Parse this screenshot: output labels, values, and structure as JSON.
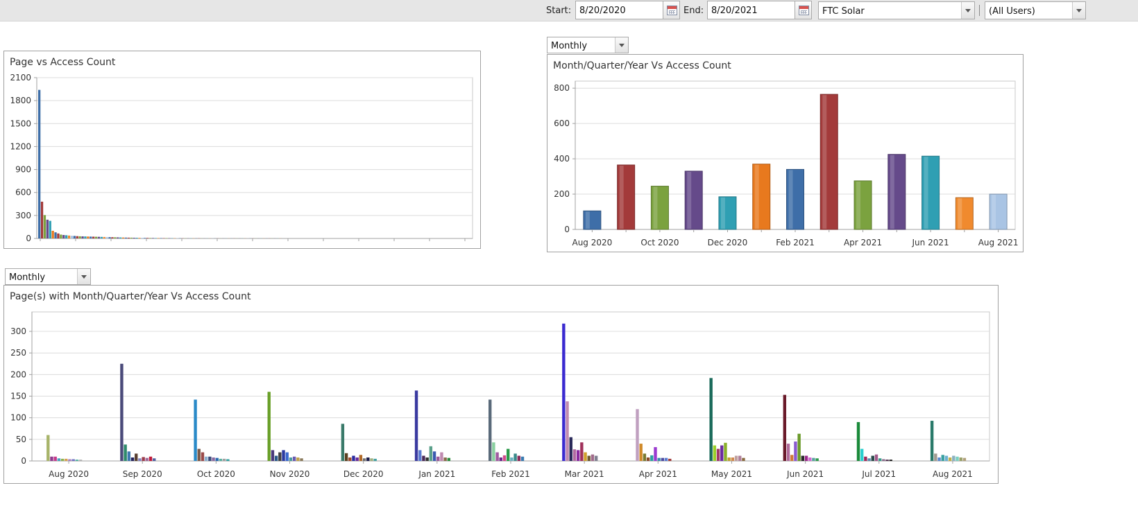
{
  "filters": {
    "start_label": "Start:",
    "start_value": "8/20/2020",
    "end_label": "End:",
    "end_value": "8/20/2021",
    "company_value": "FTC Solar",
    "separator": "|",
    "user_value": "(All Users)"
  },
  "top_right": {
    "period_dropdown": "Monthly"
  },
  "bottom": {
    "period_dropdown": "Monthly"
  },
  "colors": {
    "palette": [
      "#3e6ea8",
      "#a33a3a",
      "#7ba23f",
      "#654a8a",
      "#2f9fb3",
      "#e8791e",
      "#3e6ea8",
      "#a33a3a",
      "#7ba23f",
      "#654a8a",
      "#2f9fb3",
      "#f08a2e",
      "#a9c4e4"
    ],
    "grid": "#dcdcdc",
    "axis": "#a0a0a0"
  },
  "charts": {
    "page_access": {
      "title": "Page vs Access Count",
      "chart_data": {
        "type": "bar",
        "xlabel": "",
        "ylabel": "",
        "ylim": [
          0,
          2100
        ],
        "yticks": [
          0,
          300,
          600,
          900,
          1200,
          1500,
          1800,
          2100
        ],
        "values": [
          1940,
          480,
          305,
          245,
          230,
          100,
          80,
          65,
          50,
          45,
          42,
          38,
          35,
          33,
          30,
          28,
          27,
          26,
          25,
          24,
          23,
          22,
          21,
          20,
          19,
          18,
          17,
          16,
          15,
          14,
          13,
          12,
          11,
          10,
          10,
          9,
          9,
          8,
          8,
          7,
          7,
          6,
          6,
          5,
          5,
          5,
          4,
          4,
          4,
          3,
          3,
          3,
          3,
          2,
          2,
          2,
          2,
          2,
          2,
          2,
          1,
          1,
          1,
          1,
          1,
          1,
          1,
          1,
          1,
          1,
          1,
          1,
          1,
          1,
          1,
          1,
          1,
          1,
          1,
          1,
          1,
          1,
          1,
          1,
          1,
          1,
          1,
          1,
          1,
          1
        ]
      }
    },
    "month_access": {
      "title": "Month/Quarter/Year Vs Access Count",
      "chart_data": {
        "type": "bar",
        "categories": [
          "Aug 2020",
          "Sep 2020",
          "Oct 2020",
          "Nov 2020",
          "Dec 2020",
          "Jan 2021",
          "Feb 2021",
          "Mar 2021",
          "Apr 2021",
          "May 2021",
          "Jun 2021",
          "Jul 2021",
          "Aug 2021"
        ],
        "tick_labels": [
          "Aug 2020",
          "",
          "Oct 2020",
          "",
          "Dec 2020",
          "",
          "Feb 2021",
          "",
          "Apr 2021",
          "",
          "Jun 2021",
          "",
          "Aug 2021"
        ],
        "values": [
          105,
          365,
          245,
          330,
          185,
          370,
          340,
          765,
          275,
          425,
          415,
          180,
          200
        ],
        "ylim": [
          0,
          840
        ],
        "yticks": [
          0,
          200,
          400,
          600,
          800
        ],
        "xlabel": "",
        "ylabel": ""
      }
    },
    "pages_month_access": {
      "title": "Page(s) with Month/Quarter/Year Vs Access Count",
      "chart_data": {
        "type": "bar",
        "categories": [
          "Aug 2020",
          "Sep 2020",
          "Oct 2020",
          "Nov 2020",
          "Dec 2020",
          "Jan 2021",
          "Feb 2021",
          "Mar 2021",
          "Apr 2021",
          "May 2021",
          "Jun 2021",
          "Jul 2021",
          "Aug 2021"
        ],
        "ylim": [
          0,
          345
        ],
        "yticks": [
          0,
          50,
          100,
          150,
          200,
          250,
          300
        ],
        "xlabel": "",
        "ylabel": "",
        "groups": [
          {
            "values": [
              60,
              10,
              10,
              6,
              5,
              5,
              4,
              4,
              3,
              3
            ],
            "colors": [
              "#a8b46a",
              "#8e3a8e",
              "#c43a8a",
              "#4aa0c0",
              "#8bb050",
              "#d8a050",
              "#a67ec0",
              "#7070c0",
              "#50b0a0",
              "#b0b0b0"
            ]
          },
          {
            "values": [
              225,
              38,
              22,
              8,
              17,
              6,
              9,
              7,
              10,
              6
            ],
            "colors": [
              "#4a4a7a",
              "#2e8a6a",
              "#3e7ab0",
              "#20205a",
              "#5a4030",
              "#8080c0",
              "#9c3a4a",
              "#a06a9a",
              "#c01a3a",
              "#5060a0"
            ]
          },
          {
            "values": [
              142,
              28,
              20,
              10,
              10,
              8,
              7,
              5,
              5,
              4
            ],
            "colors": [
              "#2a8ac8",
              "#7a5a4a",
              "#9a4a4a",
              "#8ab0d0",
              "#3a4a7a",
              "#8a6aa0",
              "#2a6ab0",
              "#5ab0a0",
              "#a0a0a0",
              "#30a0a0"
            ]
          },
          {
            "values": [
              160,
              25,
              12,
              20,
              25,
              20,
              8,
              10,
              8,
              6
            ],
            "colors": [
              "#6aa02a",
              "#4a3a7a",
              "#2a5a8a",
              "#404040",
              "#2a3aa0",
              "#3a6ad0",
              "#4a9aa0",
              "#6a5ab0",
              "#c0a04a",
              "#8a7a5a"
            ]
          },
          {
            "values": [
              86,
              18,
              8,
              12,
              8,
              14,
              6,
              8,
              6,
              5
            ],
            "colors": [
              "#3a7a6a",
              "#5a4020",
              "#a04a2a",
              "#2a2aa0",
              "#6a2a9a",
              "#b06a2a",
              "#707070",
              "#1a1a4a",
              "#a0b080",
              "#40a0a0"
            ]
          },
          {
            "values": [
              163,
              25,
              12,
              8,
              34,
              22,
              10,
              20,
              8,
              7
            ],
            "colors": [
              "#3a3aa0",
              "#5a7ad0",
              "#4a2a5a",
              "#303030",
              "#5aa08a",
              "#3a5ab0",
              "#9a5a9a",
              "#c08ab0",
              "#8a6a4a",
              "#2a8a3a"
            ]
          },
          {
            "values": [
              142,
              43,
              20,
              8,
              13,
              28,
              8,
              17,
              12,
              10
            ],
            "colors": [
              "#5a6a7a",
              "#8ad0a0",
              "#a05aa0",
              "#6a2a8a",
              "#d04a8a",
              "#2a9a4a",
              "#6ab0c0",
              "#3a8a8a",
              "#8a2a5a",
              "#3a7ab0"
            ]
          },
          {
            "values": [
              318,
              138,
              55,
              27,
              25,
              43,
              20,
              12,
              15,
              12
            ],
            "colors": [
              "#3a2ad0",
              "#c08ab0",
              "#2a2a5a",
              "#b06aa0",
              "#8a2aa0",
              "#a0305a",
              "#d0a02a",
              "#705a30",
              "#a06a8a",
              "#808090"
            ]
          },
          {
            "values": [
              120,
              40,
              17,
              8,
              13,
              32,
              7,
              7,
              7,
              5
            ],
            "colors": [
              "#c0a0c0",
              "#d08a2a",
              "#7a7a30",
              "#8a4a2a",
              "#2aa0a0",
              "#9a3ad0",
              "#3a8ab0",
              "#4a4aa0",
              "#5a7ad0",
              "#a03a3a"
            ]
          },
          {
            "values": [
              192,
              36,
              28,
              36,
              42,
              8,
              8,
              12,
              12,
              7
            ],
            "colors": [
              "#1a6a5a",
              "#9ad02a",
              "#a03a6a",
              "#6a2aa0",
              "#8ab02a",
              "#c0a030",
              "#d08a50",
              "#c0a0a0",
              "#b0809a",
              "#8a6a40"
            ]
          },
          {
            "values": [
              153,
              40,
              14,
              45,
              63,
              12,
              12,
              8,
              7,
              6
            ],
            "colors": [
              "#6a1a2a",
              "#b06a9a",
              "#d07a3a",
              "#8a5ad0",
              "#6a9a2a",
              "#2a2a2a",
              "#9a2a8a",
              "#d06ad0",
              "#5aa0a0",
              "#2a9a4a"
            ]
          },
          {
            "values": [
              90,
              28,
              10,
              6,
              12,
              15,
              6,
              4,
              3,
              3
            ],
            "colors": [
              "#1a8a3a",
              "#2ad0d0",
              "#a02a5a",
              "#5a8ab0",
              "#2a4a4a",
              "#a05a8a",
              "#3a9a8a",
              "#8a6a8a",
              "#4a2a4a",
              "#1a1a1a"
            ]
          },
          {
            "values": [
              93,
              17,
              8,
              14,
              12,
              8,
              12,
              10,
              8,
              7
            ],
            "colors": [
              "#2a7a6a",
              "#a09a90",
              "#5a8ad0",
              "#3aa0a0",
              "#6ab0d0",
              "#c0b04a",
              "#8ab0c0",
              "#7ad0c0",
              "#9aa06a",
              "#b0a07a"
            ]
          }
        ]
      }
    }
  }
}
